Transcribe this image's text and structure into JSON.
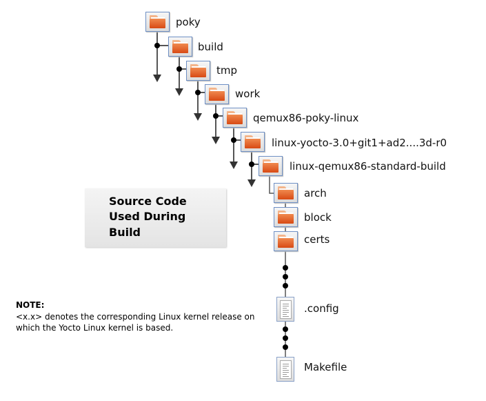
{
  "tree": [
    {
      "label": "poky",
      "icon": "folder-icon"
    },
    {
      "label": "build",
      "icon": "folder-icon"
    },
    {
      "label": "tmp",
      "icon": "folder-icon"
    },
    {
      "label": "work",
      "icon": "folder-icon"
    },
    {
      "label": "qemux86-poky-linux",
      "icon": "folder-icon"
    },
    {
      "label": "linux-yocto-3.0+git1+ad2....3d-r0",
      "icon": "folder-icon"
    },
    {
      "label": "linux-qemux86-standard-build",
      "icon": "folder-icon"
    },
    {
      "label": "arch",
      "icon": "folder-icon"
    },
    {
      "label": "block",
      "icon": "folder-icon"
    },
    {
      "label": "certs",
      "icon": "folder-icon"
    },
    {
      "label": ".config",
      "icon": "file-icon"
    },
    {
      "label": "Makefile",
      "icon": "file-icon"
    }
  ],
  "source_box": {
    "lines": [
      "Source Code",
      "Used During",
      "Build"
    ]
  },
  "note": {
    "title": "NOTE:",
    "text": "<x.x> denotes the corresponding Linux kernel release on which the Yocto Linux kernel is based."
  },
  "colors": {
    "folder": "#e0642a",
    "border": "#6d8fc4",
    "line": "#555555"
  }
}
